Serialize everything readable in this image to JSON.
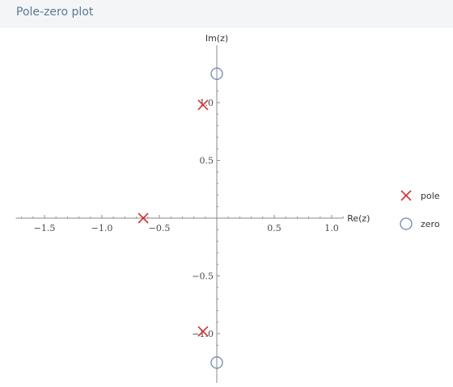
{
  "header": {
    "title": "Pole-zero plot"
  },
  "colors": {
    "pole": "#cc3333",
    "zero": "#6b87b3",
    "axis": "#8a8a8a"
  },
  "chart_data": {
    "type": "scatter",
    "title": "",
    "xlabel": "Re(z)",
    "ylabel": "Im(z)",
    "xlim": [
      -1.75,
      1.1
    ],
    "ylim": [
      -1.3,
      1.3
    ],
    "x_ticks": [
      {
        "value": -1.5,
        "label": "−1.5"
      },
      {
        "value": -1.0,
        "label": "−1.0"
      },
      {
        "value": -0.5,
        "label": "−0.5"
      },
      {
        "value": 0.5,
        "label": "0.5"
      },
      {
        "value": 1.0,
        "label": "1.0"
      }
    ],
    "y_ticks": [
      {
        "value": 1.0,
        "label": "1.0"
      },
      {
        "value": 0.5,
        "label": "0.5"
      },
      {
        "value": -0.5,
        "label": "−0.5"
      },
      {
        "value": -1.0,
        "label": "−1.0"
      }
    ],
    "minor_step": 0.1,
    "grid": false,
    "legend_position": "right",
    "series": [
      {
        "name": "pole",
        "marker": "x",
        "color": "#cc3333",
        "points": [
          [
            -0.12,
            0.98
          ],
          [
            -0.64,
            0.0
          ],
          [
            -0.12,
            -0.98
          ]
        ]
      },
      {
        "name": "zero",
        "marker": "o",
        "color": "#6b87b3",
        "points": [
          [
            0.0,
            1.25
          ],
          [
            0.0,
            -1.25
          ]
        ]
      }
    ]
  }
}
